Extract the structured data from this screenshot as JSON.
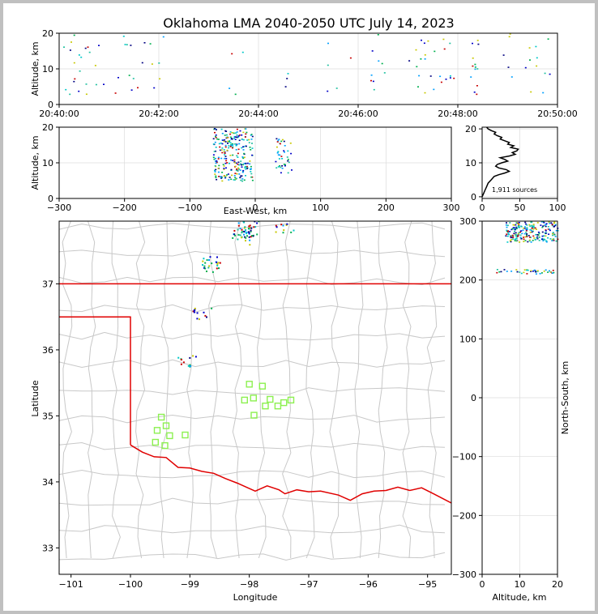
{
  "title": "Oklahoma LMA 2040-2050 UTC July 14, 2023",
  "colors": {
    "state_border": "#e00000",
    "county_lines": "#c8c8c8",
    "station_marker": "#8cf050",
    "grid": "#dcdcdc"
  },
  "chart_data": [
    {
      "panel": "altitude-time",
      "type": "scatter",
      "ylabel": "Altitude, km",
      "xlabel": "",
      "ylim": [
        0,
        20
      ],
      "y_ticks": [
        "0",
        "10",
        "20"
      ],
      "x_ticks": [
        "20:40:00",
        "20:42:00",
        "20:44:00",
        "20:46:00",
        "20:48:00",
        "20:50:00"
      ],
      "grid": true
    },
    {
      "panel": "altitude-eastwest",
      "type": "scatter",
      "xlabel": "East-West, km",
      "ylabel": "Altitude, km",
      "xlim": [
        -300,
        300
      ],
      "ylim": [
        0,
        20
      ],
      "x_ticks": [
        "−300",
        "−200",
        "−100",
        "0",
        "100",
        "200",
        "300"
      ],
      "y_ticks": [
        "0",
        "10",
        "20"
      ],
      "grid": true
    },
    {
      "panel": "altitude-histogram",
      "type": "line",
      "xlim": [
        0,
        100
      ],
      "ylim": [
        0,
        20
      ],
      "x_ticks": [
        "0",
        "50",
        "100"
      ],
      "y_ticks": [
        "0",
        "10",
        "20"
      ],
      "annotation": "1,911 sources",
      "series": [
        {
          "x": [
            0,
            2,
            4,
            6,
            8,
            12,
            16,
            22,
            30,
            36,
            32,
            22,
            18,
            20,
            26,
            34,
            30,
            24,
            36,
            44,
            40,
            46,
            48,
            38,
            42,
            34,
            36,
            30,
            24,
            26,
            20,
            16,
            18,
            12,
            8,
            6
          ],
          "y": [
            0,
            1,
            2,
            3,
            4,
            5,
            6,
            6.5,
            7,
            7.5,
            8,
            8.5,
            9,
            9.5,
            10,
            10.5,
            11,
            11.5,
            12,
            12.5,
            13,
            13.5,
            14,
            14.5,
            15,
            15.5,
            16,
            16.5,
            17,
            17.5,
            18,
            18.5,
            19,
            19.5,
            20,
            20.5
          ]
        }
      ]
    },
    {
      "panel": "plan-view",
      "type": "scatter",
      "xlabel": "Longitude",
      "ylabel": "Latitude",
      "xlim": [
        -101.2,
        -94.6
      ],
      "ylim": [
        32.6,
        37.95
      ],
      "x_ticks": [
        "−101",
        "−100",
        "−99",
        "−98",
        "−97",
        "−96",
        "−95"
      ],
      "y_ticks": [
        "33",
        "34",
        "35",
        "36",
        "37"
      ],
      "stations": {
        "lon": [
          -99.55,
          -99.48,
          -99.4,
          -99.42,
          -99.34,
          -99.08,
          -99.58,
          -98.0,
          -98.08,
          -97.93,
          -97.78,
          -97.65,
          -97.52,
          -97.73,
          -97.3,
          -97.42,
          -97.92
        ],
        "lat": [
          34.78,
          34.98,
          34.85,
          34.55,
          34.7,
          34.71,
          34.6,
          35.48,
          35.24,
          35.27,
          35.45,
          35.25,
          35.15,
          35.15,
          35.24,
          35.2,
          35.01
        ]
      },
      "sources": {
        "lon": [
          -98.12,
          -98.02,
          -98.15,
          -97.98,
          -98.05,
          -97.42,
          -98.65,
          -98.62,
          -99.05,
          -98.8
        ],
        "lat": [
          37.85,
          37.8,
          37.75,
          37.9,
          37.7,
          37.88,
          37.35,
          37.28,
          35.85,
          36.55
        ]
      }
    },
    {
      "panel": "altitude-northsouth",
      "type": "scatter",
      "xlabel": "Altitude, km",
      "ylabel": "North-South, km",
      "xlim": [
        0,
        20
      ],
      "ylim": [
        -300,
        300
      ],
      "x_ticks": [
        "0",
        "10",
        "20"
      ],
      "y_ticks": [
        "300",
        "200",
        "100",
        "0",
        "−100",
        "−200",
        "−300"
      ],
      "grid": true
    }
  ]
}
